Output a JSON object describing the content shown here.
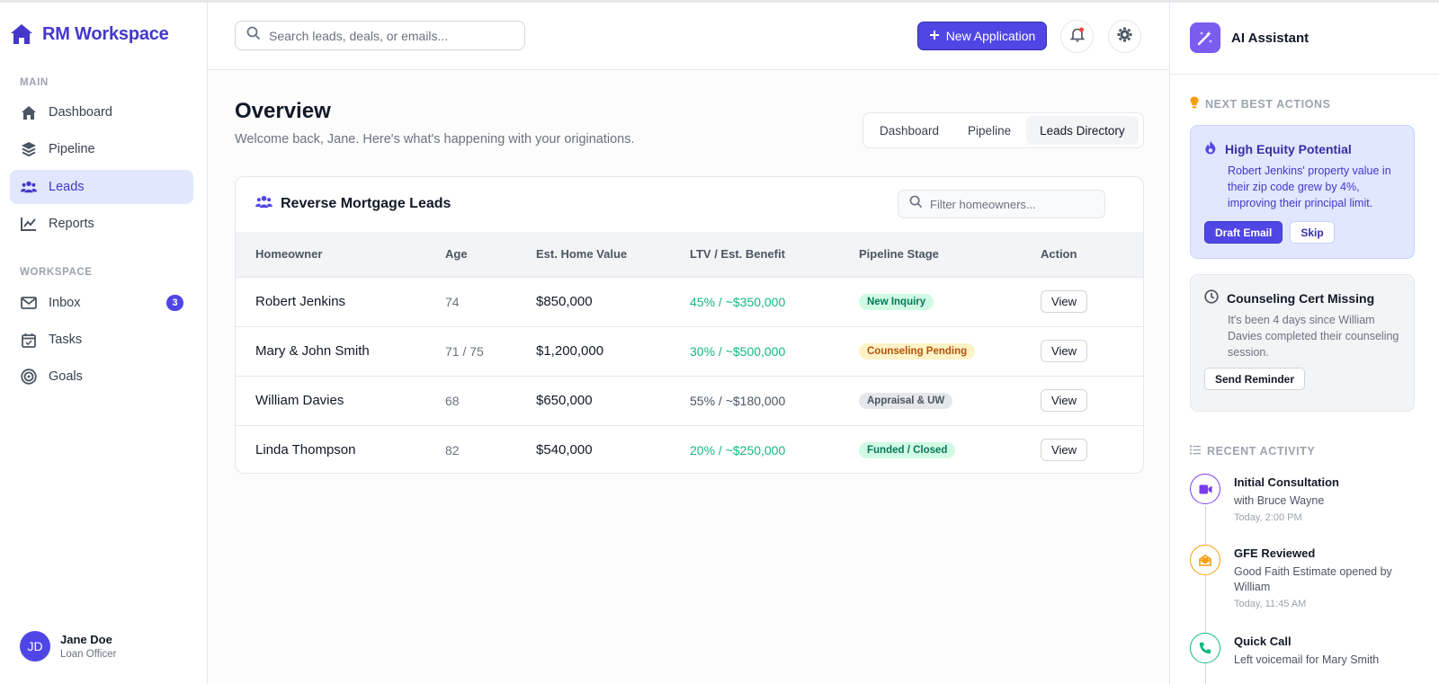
{
  "sidebar": {
    "brand": "RM Workspace",
    "main_label": "MAIN",
    "workspace_label": "WORKSPACE",
    "main_items": [
      {
        "label": "Dashboard",
        "icon": "home-icon"
      },
      {
        "label": "Pipeline",
        "icon": "layers-icon"
      },
      {
        "label": "Leads",
        "icon": "users-icon",
        "active": true
      },
      {
        "label": "Reports",
        "icon": "chart-line-icon"
      }
    ],
    "workspace_items": [
      {
        "label": "Inbox",
        "icon": "envelope-icon",
        "badge": "3"
      },
      {
        "label": "Tasks",
        "icon": "calendar-check-icon"
      },
      {
        "label": "Goals",
        "icon": "target-icon"
      }
    ],
    "user": {
      "initials": "JD",
      "name": "Jane Doe",
      "role": "Loan Officer"
    }
  },
  "topbar": {
    "search_placeholder": "Search leads, deals, or emails...",
    "new_button": "New Application"
  },
  "header": {
    "title": "Overview",
    "subtitle": "Welcome back, Jane. Here's what's happening with your originations.",
    "tabs": [
      "Dashboard",
      "Pipeline",
      "Leads Directory"
    ],
    "active_tab": "Leads Directory"
  },
  "leads": {
    "title": "Reverse Mortgage Leads",
    "filter_placeholder": "Filter homeowners...",
    "columns": [
      "Homeowner",
      "Age",
      "Est. Home Value",
      "LTV / Est. Benefit",
      "Pipeline Stage",
      "Action"
    ],
    "rows": [
      {
        "name": "Robert Jenkins",
        "age": "74",
        "value": "$850,000",
        "ltv": "45% / ~$350,000",
        "stage": "New Inquiry",
        "action": "View"
      },
      {
        "name": "Mary & John Smith",
        "age": "71 / 75",
        "value": "$1,200,000",
        "ltv": "30% / ~$500,000",
        "stage": "Counseling Pending",
        "action": "View"
      },
      {
        "name": "William Davies",
        "age": "68",
        "value": "$650,000",
        "ltv": "55% / ~$180,000",
        "stage": "Appraisal & UW",
        "action": "View"
      },
      {
        "name": "Linda Thompson",
        "age": "82",
        "value": "$540,000",
        "ltv": "20% / ~$250,000",
        "stage": "Funded / Closed",
        "action": "View"
      }
    ]
  },
  "assistant": {
    "title": "AI Assistant",
    "next_label": "NEXT BEST ACTIONS",
    "actions": [
      {
        "title": "High Equity Potential",
        "desc": "Robert Jenkins' property value in their zip code grew by 4%, improving their principal limit.",
        "primary": "Draft Email",
        "secondary": "Skip"
      },
      {
        "title": "Counseling Cert Missing",
        "desc": "It's been 4 days since William Davies completed their counseling session.",
        "primary": "Send Reminder"
      }
    ],
    "recent_label": "RECENT ACTIVITY",
    "activity": [
      {
        "title": "Initial Consultation",
        "desc": "with Bruce Wayne",
        "time": "Today, 2:00 PM",
        "icon": "video-icon",
        "color": "#7c3aed"
      },
      {
        "title": "GFE Reviewed",
        "desc": "Good Faith Estimate opened by William",
        "time": "Today, 11:45 AM",
        "icon": "envelope-open-icon",
        "color": "#f59e0b"
      },
      {
        "title": "Quick Call",
        "desc": "Left voicemail for Mary Smith",
        "time": "",
        "icon": "phone-icon",
        "color": "#10b981"
      }
    ]
  },
  "colors": {
    "accent": "#4f46e5",
    "green": "#10b981",
    "amber": "#f59e0b"
  }
}
